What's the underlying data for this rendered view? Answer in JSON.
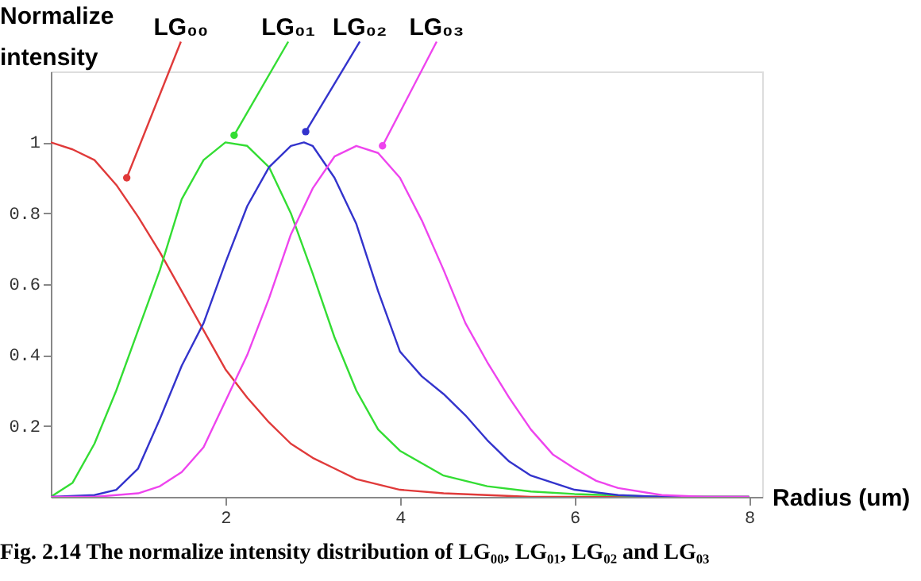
{
  "chart_data": {
    "type": "line",
    "xlabel": "Radius (um)",
    "ylabel": "Normalize intensity",
    "xlim": [
      0,
      8.15
    ],
    "ylim": [
      0,
      1.2
    ],
    "xticks": [
      2,
      4,
      6,
      8
    ],
    "yticks": [
      0.2,
      0.4,
      0.6,
      0.8,
      1
    ],
    "grid": false,
    "marker": "none",
    "line_style": "solid",
    "series": [
      {
        "color": "#e03a3a",
        "x": [
          0,
          0.25,
          0.5,
          0.75,
          1,
          1.25,
          1.5,
          1.75,
          2,
          2.25,
          2.5,
          2.75,
          3,
          3.25,
          3.5,
          4,
          4.5,
          5,
          5.5,
          6,
          7,
          8
        ],
        "values": [
          1,
          0.98,
          0.95,
          0.88,
          0.79,
          0.69,
          0.58,
          0.47,
          0.36,
          0.28,
          0.21,
          0.15,
          0.11,
          0.08,
          0.05,
          0.02,
          0.01,
          0.005,
          0,
          0,
          0,
          0
        ]
      },
      {
        "color": "#33dd33",
        "x": [
          0,
          0.25,
          0.5,
          0.75,
          1,
          1.25,
          1.5,
          1.75,
          2,
          2.25,
          2.5,
          2.75,
          3,
          3.25,
          3.5,
          3.75,
          4,
          4.5,
          5,
          5.5,
          6,
          7,
          8
        ],
        "values": [
          0,
          0.04,
          0.15,
          0.3,
          0.47,
          0.64,
          0.84,
          0.95,
          1,
          0.99,
          0.93,
          0.8,
          0.63,
          0.45,
          0.3,
          0.19,
          0.13,
          0.06,
          0.03,
          0.015,
          0.008,
          0,
          0
        ]
      },
      {
        "color": "#3333cc",
        "x": [
          0,
          0.5,
          0.75,
          1,
          1.25,
          1.5,
          1.75,
          2,
          2.25,
          2.5,
          2.75,
          2.9,
          3,
          3.25,
          3.5,
          3.75,
          4,
          4.25,
          4.5,
          4.75,
          5,
          5.25,
          5.5,
          6,
          6.5,
          7,
          8
        ],
        "values": [
          0,
          0.005,
          0.02,
          0.08,
          0.22,
          0.37,
          0.49,
          0.66,
          0.82,
          0.93,
          0.99,
          1,
          0.99,
          0.9,
          0.77,
          0.58,
          0.41,
          0.34,
          0.29,
          0.23,
          0.16,
          0.1,
          0.06,
          0.02,
          0.005,
          0,
          0
        ]
      },
      {
        "color": "#ee44ee",
        "x": [
          0,
          0.5,
          1,
          1.25,
          1.5,
          1.75,
          2,
          2.25,
          2.5,
          2.75,
          3,
          3.25,
          3.5,
          3.75,
          4,
          4.25,
          4.5,
          4.75,
          5,
          5.25,
          5.5,
          5.75,
          6,
          6.25,
          6.5,
          7,
          7.5,
          8
        ],
        "values": [
          0,
          0,
          0.01,
          0.03,
          0.07,
          0.14,
          0.27,
          0.4,
          0.56,
          0.74,
          0.87,
          0.96,
          0.99,
          0.97,
          0.9,
          0.78,
          0.64,
          0.49,
          0.38,
          0.28,
          0.19,
          0.12,
          0.08,
          0.045,
          0.025,
          0.005,
          0,
          0
        ]
      }
    ],
    "annotations": [
      {
        "text": "LG₀₀",
        "x": 0.87,
        "y": 0.9
      },
      {
        "text": "LG₀₁",
        "x": 2.1,
        "y": 1.02
      },
      {
        "text": "LG₀₂",
        "x": 2.92,
        "y": 1.03
      },
      {
        "text": "LG₀₃",
        "x": 3.8,
        "y": 0.99
      },
      "Fig. 2.14 The normalize intensity distribution of LG₀₀, LG₀₁, LG₀₂ and LG₀₃"
    ]
  }
}
